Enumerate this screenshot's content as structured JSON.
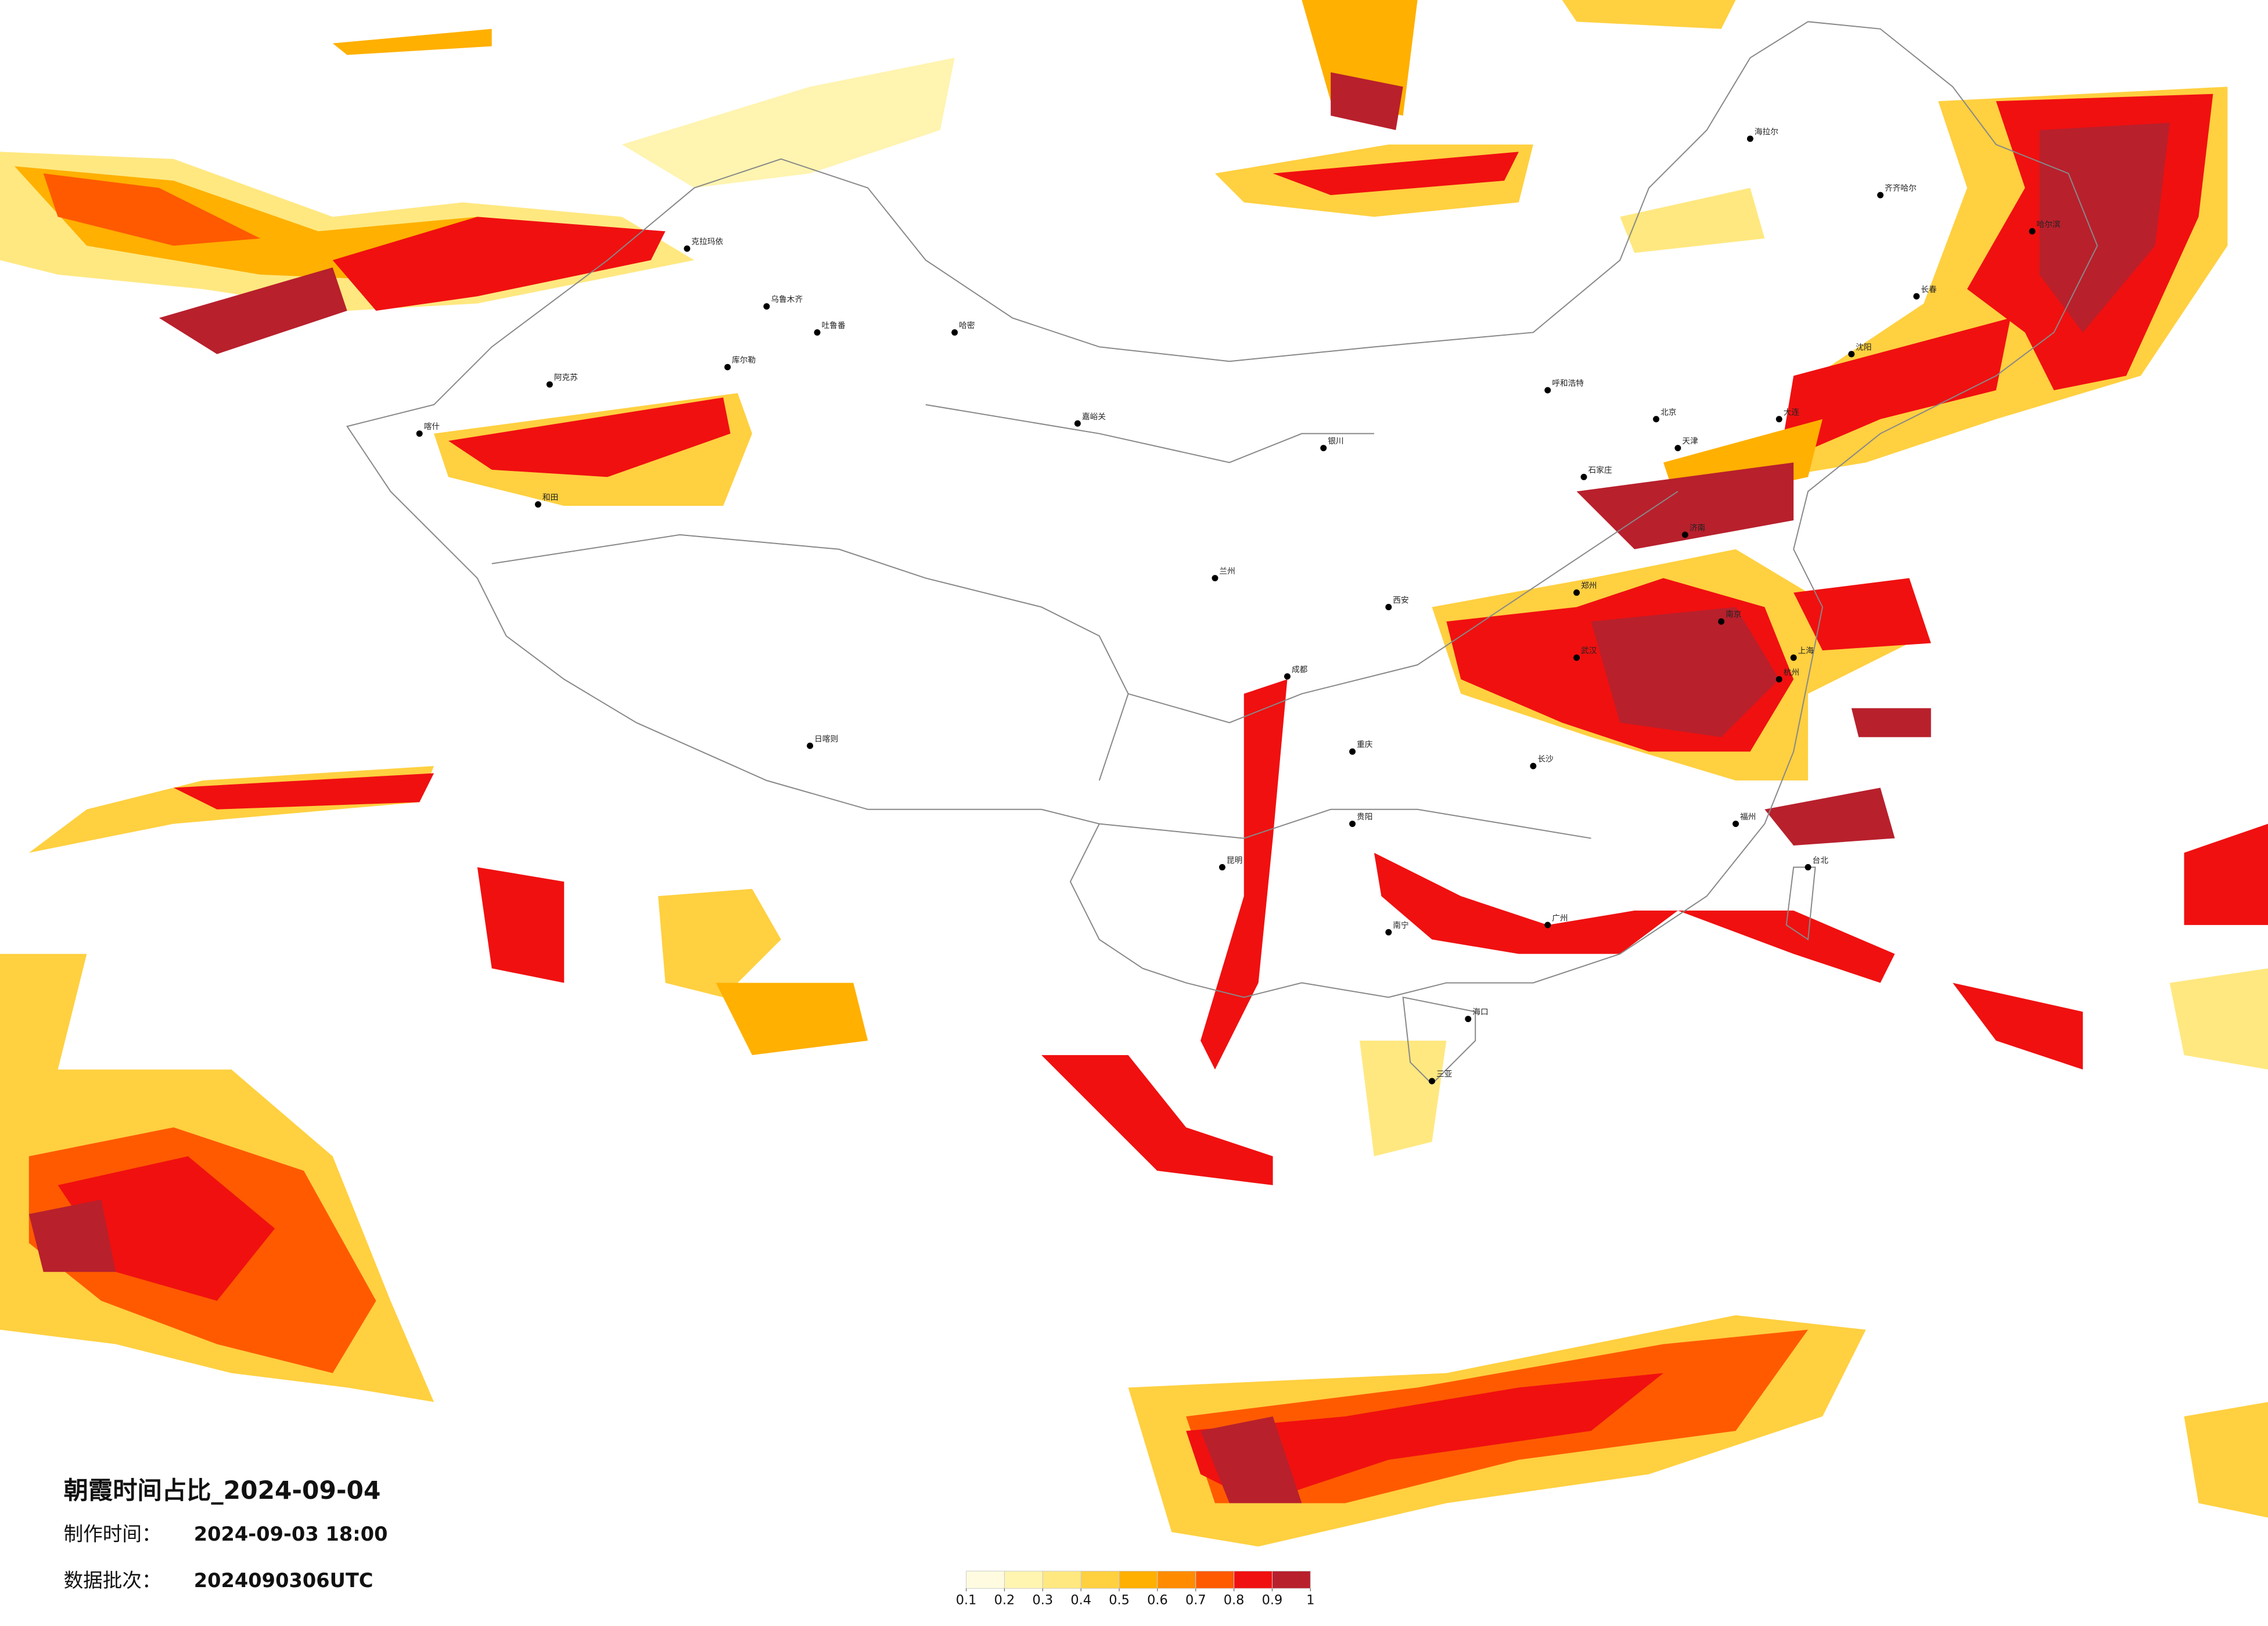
{
  "title": "朝霞时间占比_2024-09-04",
  "made_time": {
    "label": "制作时间：",
    "value": "2024-09-03 18:00"
  },
  "batch": {
    "label": "数据批次：",
    "value": "2024090306UTC"
  },
  "colorbar": {
    "ticks": [
      0.1,
      0.2,
      0.3,
      0.4,
      0.5,
      0.6,
      0.7,
      0.8,
      0.9,
      1
    ],
    "colors": [
      "#fffbe0",
      "#fff4b0",
      "#ffe880",
      "#ffd040",
      "#ffb000",
      "#ff8c00",
      "#ff5a00",
      "#f01010",
      "#b8202c"
    ]
  },
  "cities": [
    "克拉玛依",
    "乌鲁木齐",
    "吐鲁番",
    "哈密",
    "库尔勒",
    "阿克苏",
    "和田",
    "喀什",
    "日喀则",
    "嘉峪关",
    "兰州",
    "银川",
    "呼和浩特",
    "北京",
    "天津",
    "石家庄",
    "济南",
    "郑州",
    "西安",
    "成都",
    "重庆",
    "武汉",
    "南京",
    "上海",
    "杭州",
    "长沙",
    "广州",
    "南宁",
    "昆明",
    "贵阳",
    "福州",
    "台北",
    "海口",
    "三亚",
    "哈尔滨",
    "长春",
    "沈阳",
    "大连",
    "海拉尔",
    "齐齐哈尔"
  ]
}
